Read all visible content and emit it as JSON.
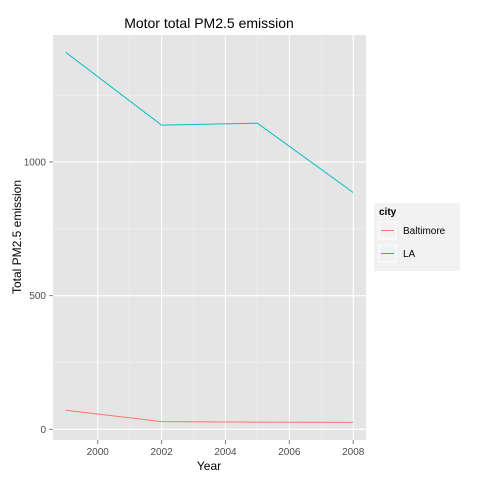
{
  "chart_data": {
    "type": "line",
    "title": "Motor total PM2.5 emission",
    "xlabel": "Year",
    "ylabel": "Total PM2.5 emission",
    "xlim": [
      1998.6,
      2008.4
    ],
    "ylim": [
      -40,
      1475
    ],
    "x_ticks": [
      2000,
      2002,
      2004,
      2006,
      2008
    ],
    "y_ticks": [
      0,
      500,
      1000
    ],
    "x_minor_ticks": [
      2001,
      2003,
      2005,
      2007
    ],
    "y_minor_ticks": [
      250,
      750,
      1250
    ],
    "grid": true,
    "legend": {
      "title": "city",
      "position": "right"
    },
    "series": [
      {
        "name": "Baltimore",
        "color": "#F8766D",
        "x": [
          1999,
          2002,
          2005,
          2008
        ],
        "values": [
          71,
          29,
          27,
          26
        ]
      },
      {
        "name": "LA",
        "color": "#00BFC4",
        "x": [
          1999,
          2002,
          2005,
          2008
        ],
        "values": [
          1410,
          1138,
          1145,
          886
        ]
      }
    ]
  }
}
